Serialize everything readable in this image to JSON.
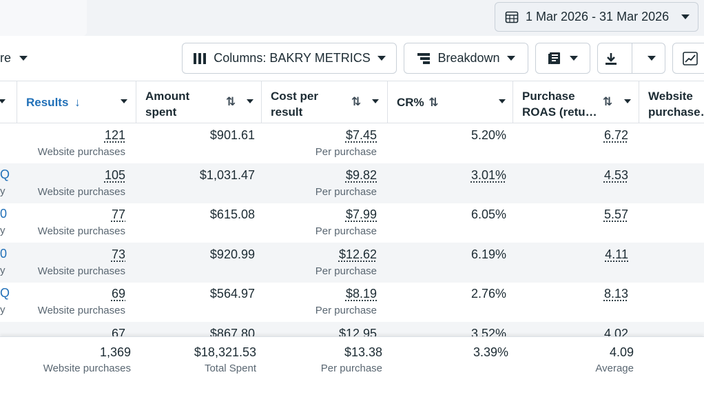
{
  "header": {
    "date_range": "1 Mar 2026 - 31 Mar 2026"
  },
  "toolbar": {
    "more_fragment": "re",
    "columns_label": "Columns: BAKRY METRICS",
    "breakdown_label": "Breakdown"
  },
  "columns": {
    "results": "Results",
    "amount_spent_1": "Amount",
    "amount_spent_2": "spent",
    "cost_per_result_1": "Cost per",
    "cost_per_result_2": "result",
    "cr": "CR%",
    "roas_1": "Purchase",
    "roas_2": "ROAS (retu…",
    "website_1": "Website",
    "website_2": "purchase…"
  },
  "rows": [
    {
      "left": "",
      "left_sub": "",
      "results": "121",
      "results_sub": "Website purchases",
      "amount": "$901.61",
      "cpr": "$7.45",
      "cpr_sub": "Per purchase",
      "cr": "5.20%",
      "roas": "6.72"
    },
    {
      "left": "Q",
      "left_sub": "y",
      "results": "105",
      "results_sub": "Website purchases",
      "amount": "$1,031.47",
      "cpr": "$9.82",
      "cpr_sub": "Per purchase",
      "cr": "3.01%",
      "roas": "4.53"
    },
    {
      "left": "0",
      "left_sub": "y",
      "results": "77",
      "results_sub": "Website purchases",
      "amount": "$615.08",
      "cpr": "$7.99",
      "cpr_sub": "Per purchase",
      "cr": "6.05%",
      "roas": "5.57"
    },
    {
      "left": "0",
      "left_sub": "y",
      "results": "73",
      "results_sub": "Website purchases",
      "amount": "$920.99",
      "cpr": "$12.62",
      "cpr_sub": "Per purchase",
      "cr": "6.19%",
      "roas": "4.11"
    },
    {
      "left": "Q",
      "left_sub": "y",
      "results": "69",
      "results_sub": "Website purchases",
      "amount": "$564.97",
      "cpr": "$8.19",
      "cpr_sub": "Per purchase",
      "cr": "2.76%",
      "roas": "8.13"
    },
    {
      "left": "",
      "left_sub": "",
      "results": "67",
      "results_sub": "",
      "amount": "$867.80",
      "cpr": "$12.95",
      "cpr_sub": "",
      "cr": "3.52%",
      "roas": "4.02"
    }
  ],
  "totals": {
    "results": "1,369",
    "results_sub": "Website purchases",
    "amount": "$18,321.53",
    "amount_sub": "Total Spent",
    "cpr": "$13.38",
    "cpr_sub": "Per purchase",
    "cr": "3.39%",
    "roas": "4.09",
    "roas_sub": "Average"
  }
}
